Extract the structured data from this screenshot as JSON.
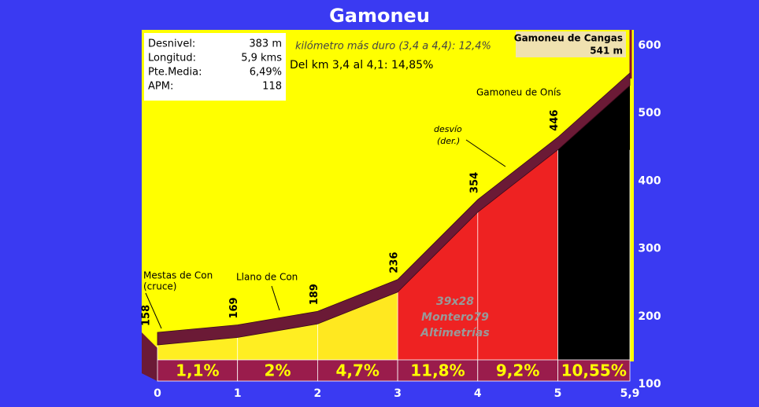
{
  "title": "Gamoneu",
  "info": {
    "rows": [
      [
        "Desnivel:",
        "383 m"
      ],
      [
        "Longitud:",
        "5,9 kms"
      ],
      [
        "Pte.Media:",
        "6,49%"
      ],
      [
        "APM:",
        "118"
      ]
    ]
  },
  "notes": {
    "hardest_km": "kilómetro más duro (3,4 a 4,4):   12,4%",
    "steepest": "Del km 3,4 al 4,1: 14,85%"
  },
  "summit": {
    "name": "Gamoneu de Cangas",
    "label": "541 m"
  },
  "places": {
    "onis": "Gamoneu de Onís",
    "desvio": [
      "desvío",
      "(der.)"
    ],
    "mestas": [
      "Mestas de Con",
      "(cruce)"
    ],
    "llano": "Llano de Con"
  },
  "credits": [
    "39x28",
    "Montero79",
    "Altimetrías"
  ],
  "chart_data": {
    "type": "area",
    "x": [
      0,
      1,
      2,
      3,
      4,
      5,
      5.9
    ],
    "values": [
      158,
      169,
      189,
      236,
      354,
      446,
      541
    ],
    "segments": {
      "values": [
        1.1,
        2,
        4.7,
        11.8,
        9.2,
        10.55
      ],
      "value_labels": [
        "1,1%",
        "2%",
        "4,7%",
        "11,8%",
        "9,2%",
        "10,55%"
      ],
      "colors": [
        "#ffee22",
        "#ffee22",
        "#ffe820",
        "#ee2222",
        "#ee2222",
        "#000000"
      ]
    },
    "line_color": "#6b1a36",
    "xlim": [
      0,
      5.9
    ],
    "xticks": [
      0,
      1,
      2,
      3,
      4,
      5,
      {
        "value": 5.9,
        "label": "5,9"
      }
    ],
    "ylim": [
      100,
      600
    ],
    "yticks": [
      100,
      200,
      300,
      400,
      500,
      600
    ]
  }
}
